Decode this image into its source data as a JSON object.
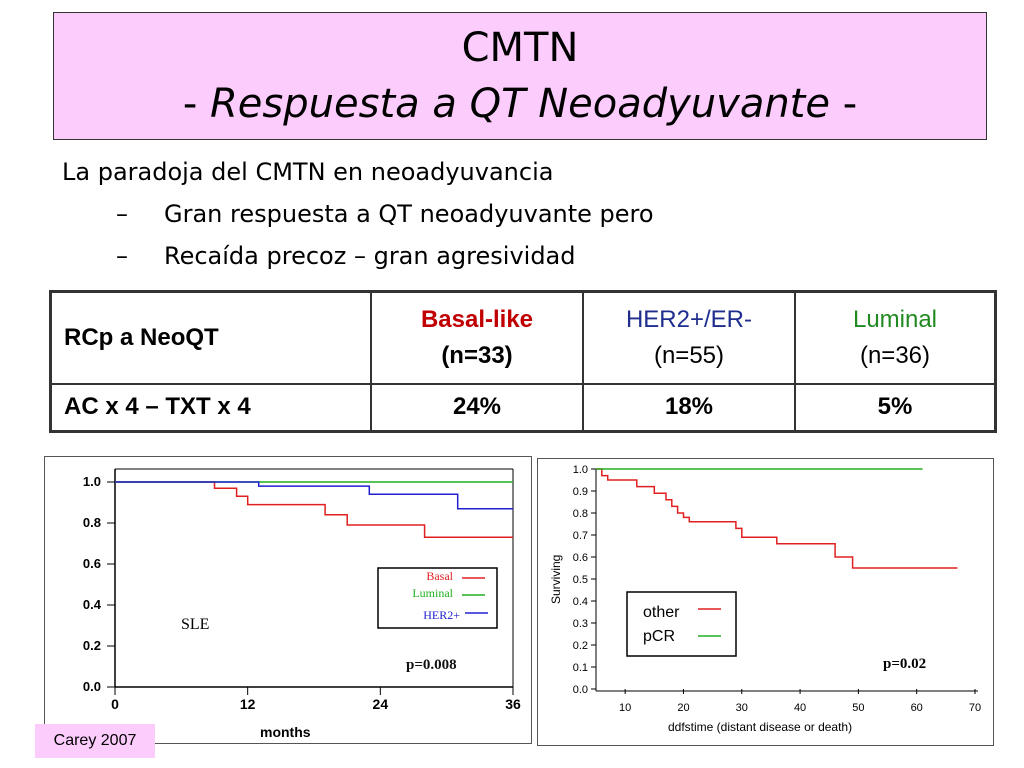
{
  "header": {
    "title_line1": "CMTN",
    "title_dash_left": "- ",
    "title_italic": "Respuesta a QT Neoadyuvante",
    "title_dash_right": " -"
  },
  "bullets": {
    "main": "La paradoja del CMTN en neoadyuvancia",
    "sub": [
      {
        "dash": "–",
        "text": "Gran respuesta a QT neoadyuvante pero"
      },
      {
        "dash": "–",
        "text": "Recaída precoz – gran agresividad"
      }
    ]
  },
  "table": {
    "header_label": "RCp a NeoQT",
    "columns": [
      {
        "name": "Basal-like",
        "n": "(n=33)",
        "color": "#c00000"
      },
      {
        "name": "HER2+/ER-",
        "n": "(n=55)",
        "color": "#1f2d8f"
      },
      {
        "name": "Luminal",
        "n": "(n=36)",
        "color": "#208a20"
      }
    ],
    "row_label": "AC x 4 – TXT x 4",
    "row_values": [
      "24%",
      "18%",
      "5%"
    ]
  },
  "chart_data": [
    {
      "type": "line",
      "title": "",
      "xlabel": "months",
      "ylabel": "",
      "xlim": [
        0,
        36
      ],
      "ylim": [
        0,
        1.0
      ],
      "x_ticks": [
        "0",
        "12",
        "24",
        "36"
      ],
      "y_ticks": [
        "0.0",
        "0.2",
        "0.4",
        "0.6",
        "0.8",
        "1.0"
      ],
      "annotations": [
        "SLE",
        "p=0.008"
      ],
      "legend_position": "right",
      "series": [
        {
          "name": "Basal",
          "color": "#e02020",
          "style": "step",
          "points": [
            [
              0,
              1.0
            ],
            [
              9,
              1.0
            ],
            [
              9,
              0.97
            ],
            [
              11,
              0.97
            ],
            [
              11,
              0.93
            ],
            [
              12,
              0.93
            ],
            [
              12,
              0.89
            ],
            [
              19,
              0.89
            ],
            [
              19,
              0.84
            ],
            [
              21,
              0.84
            ],
            [
              21,
              0.79
            ],
            [
              28,
              0.79
            ],
            [
              28,
              0.73
            ],
            [
              36,
              0.73
            ]
          ]
        },
        {
          "name": "Luminal",
          "color": "#20b020",
          "style": "step",
          "points": [
            [
              0,
              1.0
            ],
            [
              36,
              1.0
            ]
          ]
        },
        {
          "name": "HER2+",
          "color": "#2020d0",
          "style": "step",
          "points": [
            [
              0,
              1.0
            ],
            [
              13,
              1.0
            ],
            [
              13,
              0.98
            ],
            [
              23,
              0.98
            ],
            [
              23,
              0.94
            ],
            [
              31,
              0.94
            ],
            [
              31,
              0.87
            ],
            [
              36,
              0.87
            ]
          ]
        }
      ]
    },
    {
      "type": "line",
      "title": "",
      "xlabel": "ddfstime (distant disease or death)",
      "ylabel": "Surviving",
      "xlim": [
        5,
        70
      ],
      "ylim": [
        0,
        1.0
      ],
      "x_ticks": [
        "10",
        "20",
        "30",
        "40",
        "50",
        "60",
        "70"
      ],
      "y_ticks": [
        "0.0",
        "0.1",
        "0.2",
        "0.3",
        "0.4",
        "0.5",
        "0.6",
        "0.7",
        "0.8",
        "0.9",
        "1.0"
      ],
      "annotations": [
        "p=0.02"
      ],
      "legend_position": "bottom-left",
      "series": [
        {
          "name": "other",
          "color": "#e02020",
          "style": "step",
          "points": [
            [
              5,
              1.0
            ],
            [
              6,
              1.0
            ],
            [
              6,
              0.97
            ],
            [
              7,
              0.97
            ],
            [
              7,
              0.95
            ],
            [
              12,
              0.95
            ],
            [
              12,
              0.92
            ],
            [
              15,
              0.92
            ],
            [
              15,
              0.89
            ],
            [
              17,
              0.89
            ],
            [
              17,
              0.86
            ],
            [
              18,
              0.86
            ],
            [
              18,
              0.83
            ],
            [
              19,
              0.83
            ],
            [
              19,
              0.8
            ],
            [
              20,
              0.8
            ],
            [
              20,
              0.78
            ],
            [
              21,
              0.78
            ],
            [
              21,
              0.76
            ],
            [
              29,
              0.76
            ],
            [
              29,
              0.73
            ],
            [
              30,
              0.73
            ],
            [
              30,
              0.69
            ],
            [
              36,
              0.69
            ],
            [
              36,
              0.66
            ],
            [
              46,
              0.66
            ],
            [
              46,
              0.6
            ],
            [
              49,
              0.6
            ],
            [
              49,
              0.55
            ],
            [
              67,
              0.55
            ]
          ]
        },
        {
          "name": "pCR",
          "color": "#20b020",
          "style": "step",
          "points": [
            [
              5,
              1.0
            ],
            [
              61,
              1.0
            ]
          ]
        }
      ]
    }
  ],
  "footer": {
    "citation": "Carey 2007"
  }
}
